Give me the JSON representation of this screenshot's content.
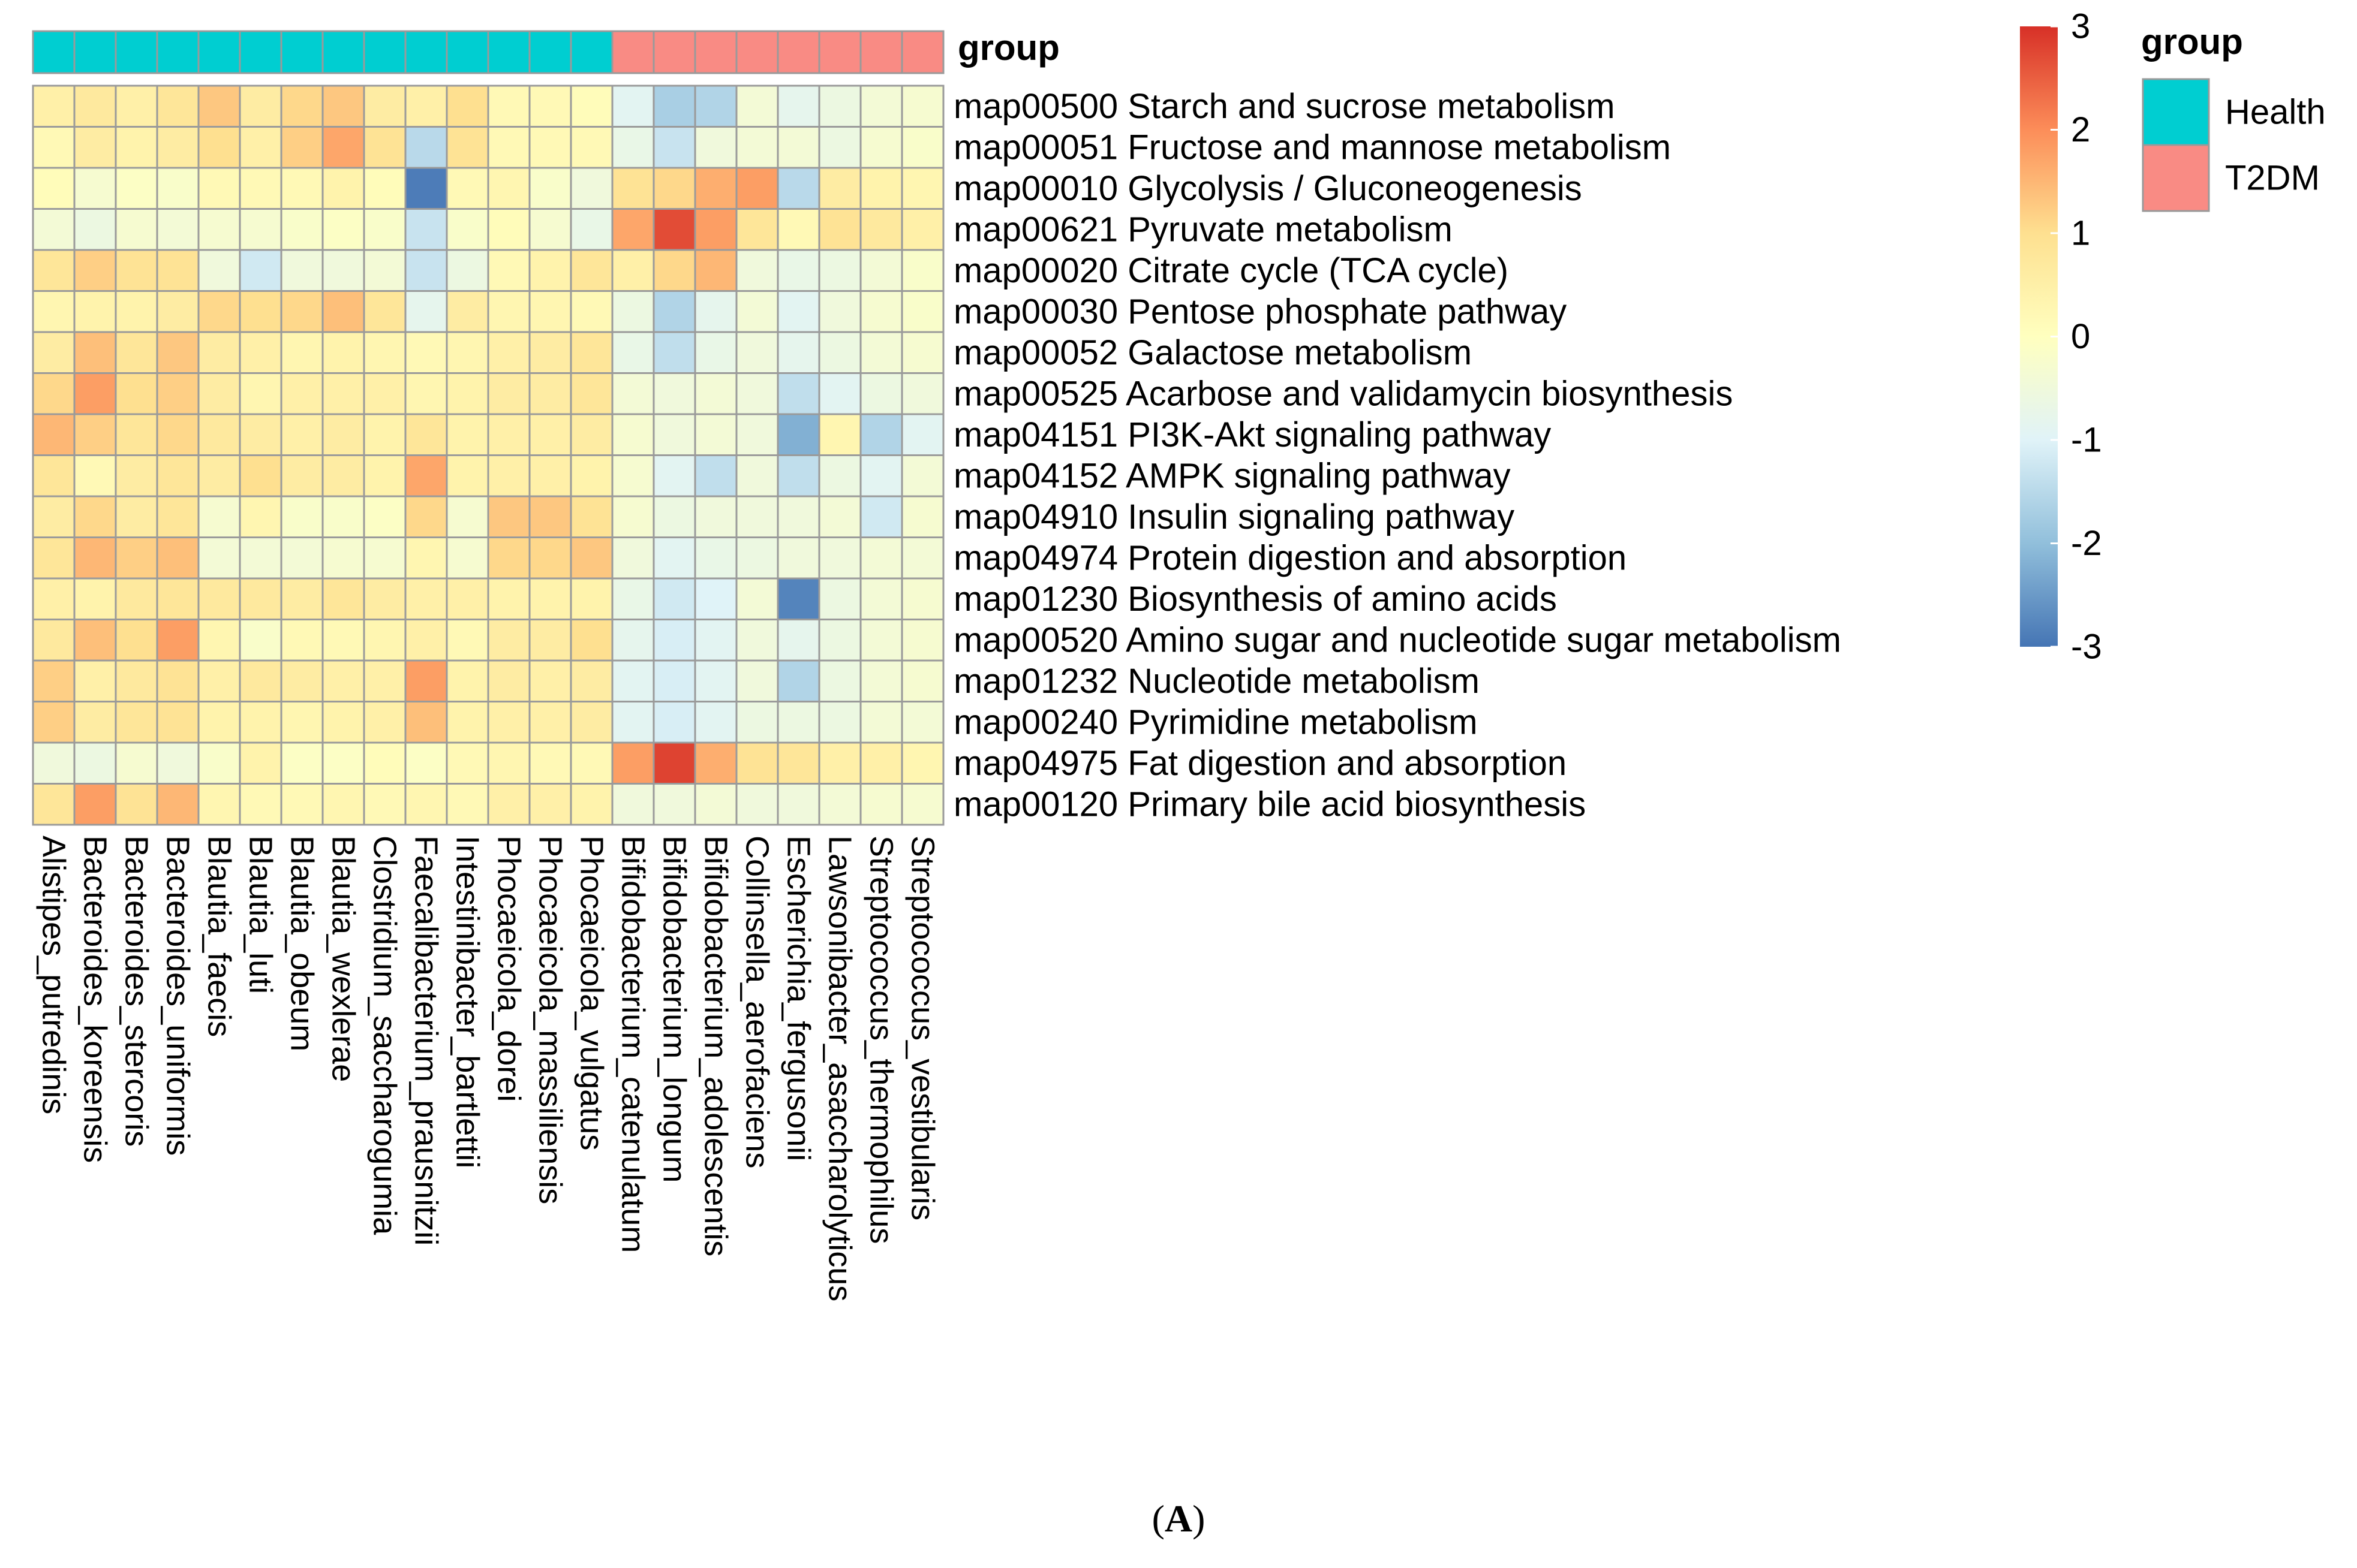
{
  "chart_data": {
    "type": "heatmap",
    "panel_label": {
      "open": "(",
      "letter": "A",
      "close": ")"
    },
    "annotation": {
      "title": "group",
      "legend_title": "group",
      "levels": [
        {
          "name": "Health",
          "color": "#00CED1"
        },
        {
          "name": "T2DM",
          "color": "#F98B84"
        }
      ]
    },
    "colorbar": {
      "range": [
        -3,
        3
      ],
      "ticks": [
        "3",
        "2",
        "1",
        "0",
        "-1",
        "-2",
        "-3"
      ],
      "colors": [
        "#4575B4",
        "#91BFDB",
        "#E0F3F8",
        "#FFFFBF",
        "#FEE090",
        "#FC8D59",
        "#D73027"
      ]
    },
    "columns": [
      {
        "name": "Alistipes_putredinis",
        "group": "Health"
      },
      {
        "name": "Bacteroides_koreensis",
        "group": "Health"
      },
      {
        "name": "Bacteroides_stercoris",
        "group": "Health"
      },
      {
        "name": "Bacteroides_uniformis",
        "group": "Health"
      },
      {
        "name": "Blautia_faecis",
        "group": "Health"
      },
      {
        "name": "Blautia_luti",
        "group": "Health"
      },
      {
        "name": "Blautia_obeum",
        "group": "Health"
      },
      {
        "name": "Blautia_wexlerae",
        "group": "Health"
      },
      {
        "name": "Clostridium_saccharogumia",
        "group": "Health"
      },
      {
        "name": "Faecalibacterium_prausnitzii",
        "group": "Health"
      },
      {
        "name": "Intestinibacter_bartlettii",
        "group": "Health"
      },
      {
        "name": "Phocaeicola_dorei",
        "group": "Health"
      },
      {
        "name": "Phocaeicola_massiliensis",
        "group": "Health"
      },
      {
        "name": "Phocaeicola_vulgatus",
        "group": "Health"
      },
      {
        "name": "Bifidobacterium_catenulatum",
        "group": "T2DM"
      },
      {
        "name": "Bifidobacterium_longum",
        "group": "T2DM"
      },
      {
        "name": "Bifidobacterium_adolescentis",
        "group": "T2DM"
      },
      {
        "name": "Collinsella_aerofaciens",
        "group": "T2DM"
      },
      {
        "name": "Escherichia_fergusonii",
        "group": "T2DM"
      },
      {
        "name": "Lawsonibacter_asaccharolyticus",
        "group": "T2DM"
      },
      {
        "name": "Streptococcus_thermophilus",
        "group": "T2DM"
      },
      {
        "name": "Streptococcus_vestibularis",
        "group": "T2DM"
      }
    ],
    "rows": [
      "map00500 Starch and sucrose metabolism",
      "map00051 Fructose and mannose metabolism",
      "map00010 Glycolysis / Gluconeogenesis",
      "map00621 Pyruvate metabolism",
      "map00020 Citrate cycle (TCA cycle)",
      "map00030 Pentose phosphate pathway",
      "map00052 Galactose metabolism",
      "map00525 Acarbose and validamycin biosynthesis",
      "map04151 PI3K-Akt signaling pathway",
      "map04152 AMPK signaling pathway",
      "map04910 Insulin signaling pathway",
      "map04974 Protein digestion and absorption",
      "map01230 Biosynthesis of amino acids",
      "map00520 Amino sugar and nucleotide sugar metabolism",
      "map01232 Nucleotide metabolism",
      "map00240 Pyrimidine metabolism",
      "map04975 Fat digestion and absorption",
      "map00120 Primary bile acid biosynthesis"
    ],
    "values": [
      [
        0.5,
        0.7,
        0.5,
        0.8,
        1.3,
        0.6,
        1.1,
        1.3,
        0.6,
        0.5,
        1.0,
        0.2,
        0.2,
        0.1,
        -0.9,
        -1.7,
        -1.6,
        -0.4,
        -0.8,
        -0.6,
        -0.4,
        -0.3
      ],
      [
        0.2,
        0.6,
        0.4,
        0.6,
        1.0,
        0.5,
        1.2,
        1.7,
        0.9,
        -1.5,
        0.9,
        0.2,
        0.2,
        0.2,
        -0.7,
        -1.3,
        -0.5,
        -0.4,
        -0.4,
        -0.6,
        -0.3,
        -0.2
      ],
      [
        0.1,
        -0.3,
        -0.1,
        -0.2,
        0.2,
        0.2,
        0.2,
        0.4,
        0.1,
        -2.9,
        0.2,
        0.3,
        -0.2,
        -0.5,
        0.9,
        1.1,
        1.6,
        1.8,
        -1.5,
        0.6,
        0.4,
        0.3
      ],
      [
        -0.4,
        -0.6,
        -0.3,
        -0.4,
        -0.3,
        -0.3,
        -0.2,
        -0.1,
        -0.2,
        -1.3,
        -0.2,
        0.1,
        -0.3,
        -0.7,
        1.7,
        2.7,
        1.8,
        0.8,
        0.2,
        0.9,
        0.7,
        0.5
      ],
      [
        0.8,
        1.2,
        0.9,
        0.9,
        -0.5,
        -1.2,
        -0.5,
        -0.5,
        -0.4,
        -1.3,
        -0.6,
        0.2,
        0.4,
        0.8,
        0.5,
        1.1,
        1.5,
        -0.5,
        -0.7,
        -0.6,
        -0.4,
        -0.2
      ],
      [
        0.3,
        0.4,
        0.4,
        0.6,
        1.1,
        1.0,
        1.1,
        1.4,
        0.8,
        -0.8,
        0.6,
        0.3,
        0.3,
        0.2,
        -0.6,
        -1.6,
        -0.8,
        -0.4,
        -0.9,
        -0.5,
        -0.3,
        -0.2
      ],
      [
        0.6,
        1.4,
        0.8,
        1.3,
        0.6,
        0.5,
        0.3,
        0.4,
        0.3,
        0.2,
        0.3,
        0.5,
        0.6,
        0.8,
        -0.7,
        -1.4,
        -0.7,
        -0.5,
        -0.8,
        -0.6,
        -0.4,
        -0.3
      ],
      [
        1.1,
        1.8,
        1.0,
        1.2,
        0.6,
        0.3,
        0.5,
        0.5,
        0.5,
        0.3,
        0.4,
        0.6,
        0.6,
        0.8,
        -0.4,
        -0.5,
        -0.4,
        -0.5,
        -1.4,
        -0.9,
        -0.6,
        -0.5
      ],
      [
        1.5,
        1.2,
        0.8,
        1.1,
        0.7,
        0.6,
        0.5,
        0.6,
        0.4,
        0.8,
        0.4,
        0.5,
        0.5,
        0.6,
        -0.3,
        -0.5,
        -0.4,
        -0.5,
        -2.2,
        0.3,
        -1.6,
        -0.9
      ],
      [
        0.8,
        0.2,
        0.6,
        0.8,
        0.6,
        1.0,
        0.6,
        0.6,
        0.4,
        1.7,
        0.4,
        0.5,
        0.5,
        0.4,
        -0.3,
        -0.9,
        -1.4,
        -0.5,
        -1.4,
        -0.6,
        -0.9,
        -0.4
      ],
      [
        0.6,
        1.1,
        0.6,
        0.8,
        -0.3,
        0.3,
        -0.2,
        -0.2,
        -0.1,
        1.1,
        -0.3,
        1.3,
        1.3,
        0.9,
        -0.3,
        -0.6,
        -0.5,
        -0.5,
        -0.5,
        -0.4,
        -1.2,
        -0.3
      ],
      [
        0.8,
        1.5,
        1.2,
        1.4,
        -0.4,
        -0.4,
        -0.4,
        -0.3,
        -0.3,
        0.3,
        -0.3,
        1.1,
        1.1,
        1.3,
        -0.5,
        -0.9,
        -0.7,
        -0.6,
        -0.5,
        -0.5,
        -0.4,
        -0.4
      ],
      [
        0.5,
        0.4,
        0.7,
        0.8,
        0.7,
        0.7,
        0.6,
        0.8,
        0.6,
        0.5,
        0.5,
        0.4,
        0.4,
        0.4,
        -0.7,
        -1.2,
        -1.0,
        -0.4,
        -2.8,
        -0.6,
        -0.4,
        -0.3
      ],
      [
        0.7,
        1.4,
        1.0,
        1.8,
        0.3,
        -0.2,
        0.2,
        0.2,
        0.3,
        0.5,
        0.2,
        0.6,
        0.6,
        1.0,
        -0.8,
        -1.1,
        -0.9,
        -0.5,
        -0.8,
        -0.6,
        -0.4,
        -0.3
      ],
      [
        1.2,
        0.5,
        0.7,
        0.9,
        0.5,
        0.7,
        0.6,
        0.5,
        0.5,
        1.8,
        0.4,
        0.6,
        0.5,
        0.6,
        -0.9,
        -1.1,
        -0.9,
        -0.5,
        -1.6,
        -0.6,
        -0.4,
        -0.3
      ],
      [
        1.2,
        0.6,
        0.8,
        0.9,
        0.4,
        0.4,
        0.3,
        0.4,
        0.5,
        1.4,
        0.4,
        0.5,
        0.5,
        0.6,
        -0.9,
        -1.1,
        -0.9,
        -0.6,
        -0.6,
        -0.6,
        -0.4,
        -0.4
      ],
      [
        -0.5,
        -0.6,
        -0.3,
        -0.5,
        -0.2,
        0.4,
        -0.1,
        -0.1,
        0.1,
        -0.1,
        0.2,
        0.3,
        0.2,
        0.2,
        1.8,
        2.8,
        1.6,
        0.9,
        0.8,
        0.5,
        0.5,
        0.3
      ],
      [
        0.8,
        1.8,
        0.9,
        1.5,
        0.3,
        0.2,
        0.2,
        0.3,
        0.2,
        0.3,
        0.2,
        0.5,
        0.5,
        0.4,
        -0.5,
        -0.5,
        -0.4,
        -0.5,
        -0.5,
        -0.4,
        -0.3,
        -0.3
      ]
    ]
  }
}
